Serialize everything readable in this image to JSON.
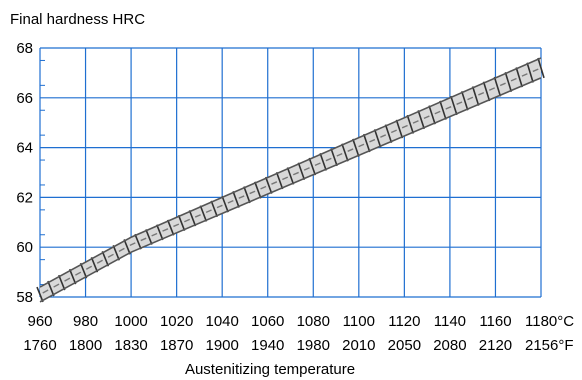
{
  "chart_data": {
    "type": "line",
    "title": "Final hardness HRC",
    "xlabel": "Austenitizing temperature",
    "x_unit_primary": "°C",
    "x_unit_secondary": "°F",
    "xlim": [
      960,
      1180
    ],
    "ylim": [
      58,
      68
    ],
    "grid": true,
    "x_ticks_c": [
      "960",
      "980",
      "1000",
      "1020",
      "1040",
      "1060",
      "1080",
      "1100",
      "1120",
      "1140",
      "1160",
      "1180°C"
    ],
    "x_ticks_f": [
      "1760",
      "1800",
      "1830",
      "1870",
      "1900",
      "1940",
      "1980",
      "2010",
      "2050",
      "2080",
      "2120",
      "2156°F"
    ],
    "y_ticks": [
      "58",
      "60",
      "62",
      "64",
      "66",
      "68"
    ],
    "band": {
      "x": [
        960,
        1000,
        1180
      ],
      "upper": [
        58.4,
        60.4,
        67.6
      ],
      "lower": [
        57.8,
        59.8,
        66.8
      ]
    },
    "colors": {
      "grid": "#1f6fd1",
      "band": "#555555",
      "band_fill": "#d9d9d9"
    }
  }
}
